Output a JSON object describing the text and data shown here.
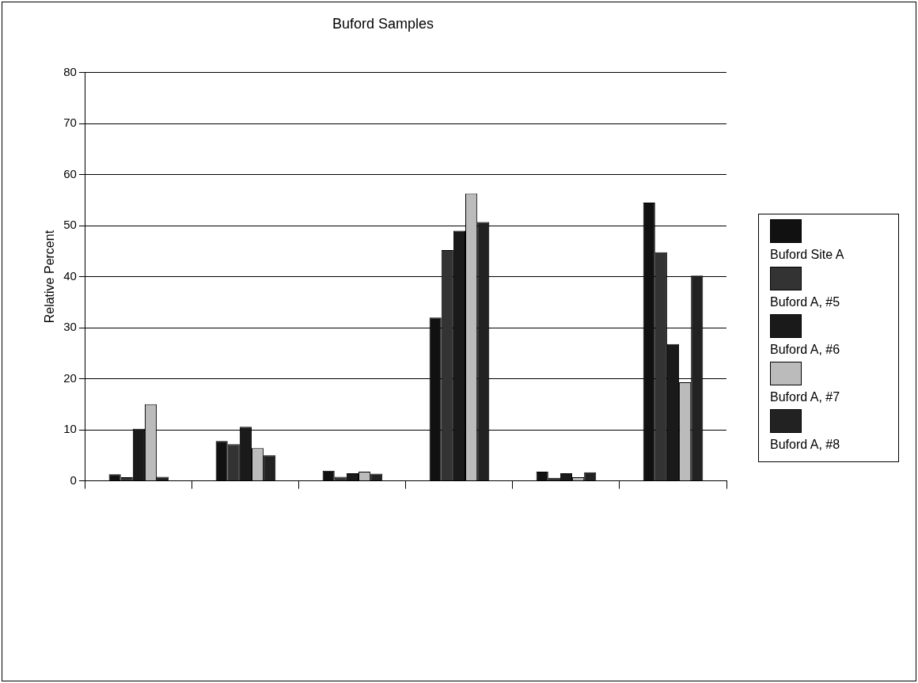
{
  "chart_data": {
    "type": "bar",
    "title": "Buford Samples",
    "ylabel": "Relative Percent",
    "categories": [
      null,
      null,
      null,
      null,
      null,
      null
    ],
    "series": [
      {
        "name": "Buford Site A",
        "color": "#111111",
        "values": [
          1.3,
          7.8,
          2.0,
          32,
          1.8,
          54.5
        ]
      },
      {
        "name": "Buford A, #5",
        "color": "#333333",
        "values": [
          0.7,
          7.2,
          0.8,
          45.2,
          0.6,
          44.8
        ]
      },
      {
        "name": "Buford A, #6",
        "color": "#1a1a1a",
        "values": [
          10.2,
          10.6,
          1.5,
          49,
          1.5,
          26.8
        ]
      },
      {
        "name": "Buford A, #7",
        "color": "#bbbbbb",
        "values": [
          15,
          6.4,
          1.8,
          56.3,
          0.7,
          19.3
        ]
      },
      {
        "name": "Buford A, #8",
        "color": "#222222",
        "values": [
          0.8,
          5.0,
          1.4,
          50.7,
          1.7,
          40.2
        ]
      }
    ],
    "ylim": [
      0,
      80
    ],
    "yticks": [
      0,
      10,
      20,
      30,
      40,
      50,
      60,
      70,
      80
    ],
    "grid": "y",
    "legend": "right"
  }
}
